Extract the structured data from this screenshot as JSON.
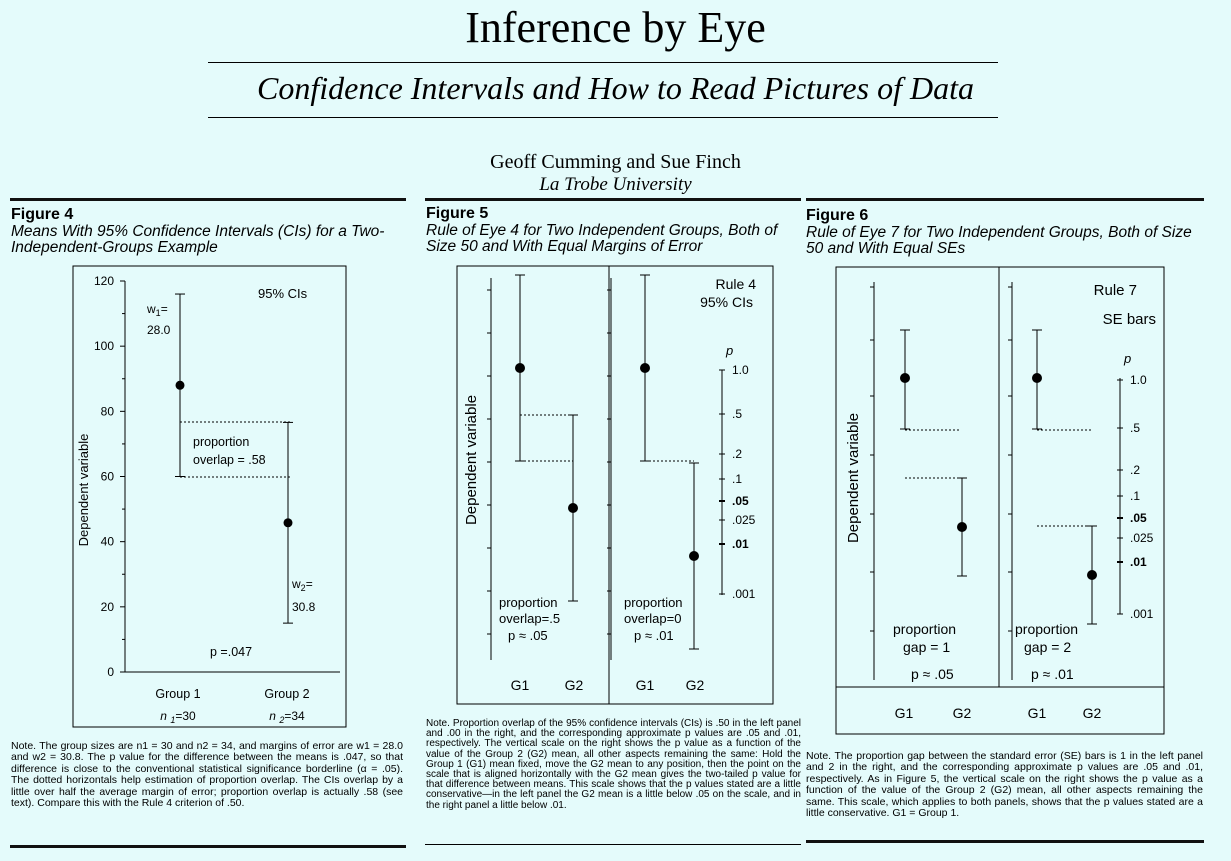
{
  "header": {
    "title": "Inference by Eye",
    "subtitle": "Confidence Intervals and How to Read Pictures of Data",
    "authors": "Geoff Cumming and Sue Finch",
    "affiliation": "La Trobe University"
  },
  "figure4": {
    "label": "Figure 4",
    "caption": "Means With 95% Confidence Intervals (CIs) for a Two-Independent-Groups Example",
    "note": "Note.   The group sizes are n1 = 30 and n2 = 34, and margins of error are w1 = 28.0 and w2 = 30.8. The p value for the difference between the means is .047, so that difference is close to the conventional statistical significance borderline (α = .05). The dotted horizontals help estimation of proportion overlap. The CIs overlap by a little over half the average margin of error; proportion overlap is actually .58 (see text). Compare this with the Rule 4 criterion of .50."
  },
  "figure5": {
    "label": "Figure 5",
    "caption": "Rule of Eye 4 for Two Independent Groups, Both of Size 50 and With Equal Margins of Error",
    "note": "Note.   Proportion overlap of the 95% confidence intervals (CIs) is .50 in the left panel and .00 in the right, and the corresponding approximate p values are .05 and .01, respectively. The vertical scale on the right shows the p value as a function of the value of the Group 2 (G2) mean, all other aspects remaining the same: Hold the Group 1 (G1) mean fixed, move the G2 mean to any position, then the point on the scale that is aligned horizontally with the G2 mean gives the two-tailed p value for that difference between means. This scale shows that the p values stated are a little conservative—in the left panel the G2 mean is a little below .05 on the scale, and in the right panel a little below .01."
  },
  "figure6": {
    "label": "Figure 6",
    "caption": "Rule of Eye 7 for Two Independent Groups, Both of Size 50 and With Equal SEs",
    "note": "Note.   The proportion gap between the standard error (SE) bars is 1 in the left panel and 2 in the right, and the corresponding approximate p values are .05 and .01, respectively. As in Figure 5, the vertical scale on the right shows the p value as a function of the value of the Group 2 (G2) mean, all other aspects remaining the same. This scale, which applies to both panels, shows that the p values stated are a little conservative. G1 = Group 1."
  },
  "chart_data": [
    {
      "type": "scatter",
      "figure": "Figure 4",
      "ylabel": "Dependent variable",
      "ylim": [
        0,
        120
      ],
      "yticks": [
        0,
        20,
        40,
        60,
        80,
        100,
        120
      ],
      "categories": [
        "Group 1",
        "Group 2"
      ],
      "category_sublabels": [
        "n 1=30",
        "n 2=34"
      ],
      "means": [
        88,
        45.8
      ],
      "ci_low": [
        60,
        15
      ],
      "ci_high": [
        116,
        76.6
      ],
      "margins": [
        "w1= 28.0",
        "w2= 30.8"
      ],
      "annotations": [
        "95% CIs",
        "proportion overlap = .58",
        "p =.047"
      ],
      "grid": false
    },
    {
      "type": "scatter",
      "figure": "Figure 5",
      "ylabel": "Dependent variable",
      "rule": "Rule 4",
      "interval": "95% CIs",
      "panels": [
        {
          "categories": [
            "G1",
            "G2"
          ],
          "means": [
            368,
            508
          ],
          "ci_low": [
            275,
            415
          ],
          "ci_high": [
            461,
            601
          ],
          "labels": [
            "proportion",
            "overlap=.5",
            "p ≈ .05"
          ]
        },
        {
          "categories": [
            "G1",
            "G2"
          ],
          "means": [
            368,
            556
          ],
          "ci_low": [
            275,
            463
          ],
          "ci_high": [
            461,
            649
          ],
          "labels": [
            "proportion",
            "overlap=0",
            "p ≈ .01"
          ]
        }
      ],
      "p_scale": {
        "title": "p",
        "ticks": [
          "1.0",
          ".5",
          ".2",
          ".1",
          ".05",
          ".025",
          ".01",
          ".001"
        ]
      },
      "grid": false
    },
    {
      "type": "scatter",
      "figure": "Figure 6",
      "ylabel": "Dependent variable",
      "rule": "Rule 7",
      "interval": "SE bars",
      "panels": [
        {
          "categories": [
            "G1",
            "G2"
          ],
          "means": [
            378,
            527
          ],
          "se_low": [
            330,
            478
          ],
          "se_high": [
            429,
            576
          ],
          "labels": [
            "proportion",
            "gap = 1",
            "p ≈ .05"
          ]
        },
        {
          "categories": [
            "G1",
            "G2"
          ],
          "means": [
            378,
            575
          ],
          "se_low": [
            330,
            526
          ],
          "se_high": [
            429,
            624
          ],
          "labels": [
            "proportion",
            "gap = 2",
            "p ≈ .01"
          ]
        }
      ],
      "p_scale": {
        "title": "p",
        "ticks": [
          "1.0",
          ".5",
          ".2",
          ".1",
          ".05",
          ".025",
          ".01",
          ".001"
        ]
      },
      "grid": false
    }
  ]
}
